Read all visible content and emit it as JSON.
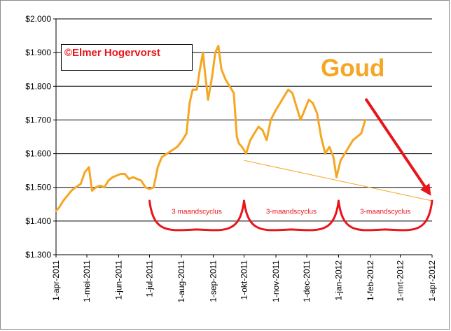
{
  "chart_data": {
    "type": "line",
    "title": "Goud",
    "copyright": "©Elmer Hogervorst",
    "xlabel": "",
    "ylabel": "",
    "ylim": [
      1300,
      2000
    ],
    "y_ticks": [
      "$1.300",
      "$1.400",
      "$1.500",
      "$1.600",
      "$1.700",
      "$1.800",
      "$1.900",
      "$2.000"
    ],
    "y_tick_values": [
      1300,
      1400,
      1500,
      1600,
      1700,
      1800,
      1900,
      2000
    ],
    "x_ticks": [
      "1-apr-2011",
      "1-mei-2011",
      "1-jun-2011",
      "1-jul-2011",
      "1-aug-2011",
      "1-sep-2011",
      "1-okt-2011",
      "1-nov-2011",
      "1-dec-2011",
      "1-jan-2012",
      "1-feb-2012",
      "1-mrt-2012",
      "1-apr-2012"
    ],
    "x_tick_dates": [
      "2011-04-01",
      "2011-05-01",
      "2011-06-01",
      "2011-07-01",
      "2011-08-01",
      "2011-09-01",
      "2011-10-01",
      "2011-11-01",
      "2011-12-01",
      "2012-01-01",
      "2012-02-01",
      "2012-03-01",
      "2012-04-01"
    ],
    "grid": "horizontal",
    "series": [
      {
        "color": "#f5a623",
        "x": [
          "2011-04-01",
          "2011-04-04",
          "2011-04-08",
          "2011-04-12",
          "2011-04-16",
          "2011-04-20",
          "2011-04-25",
          "2011-04-29",
          "2011-05-03",
          "2011-05-06",
          "2011-05-10",
          "2011-05-14",
          "2011-05-18",
          "2011-05-22",
          "2011-05-26",
          "2011-05-30",
          "2011-06-03",
          "2011-06-07",
          "2011-06-11",
          "2011-06-15",
          "2011-06-19",
          "2011-06-23",
          "2011-06-27",
          "2011-07-01",
          "2011-07-05",
          "2011-07-09",
          "2011-07-13",
          "2011-07-18",
          "2011-07-23",
          "2011-07-28",
          "2011-08-02",
          "2011-08-06",
          "2011-08-09",
          "2011-08-12",
          "2011-08-16",
          "2011-08-19",
          "2011-08-22",
          "2011-08-24",
          "2011-08-27",
          "2011-08-31",
          "2011-09-03",
          "2011-09-06",
          "2011-09-09",
          "2011-09-13",
          "2011-09-17",
          "2011-09-21",
          "2011-09-24",
          "2011-09-26",
          "2011-09-29",
          "2011-10-03",
          "2011-10-07",
          "2011-10-11",
          "2011-10-15",
          "2011-10-19",
          "2011-10-23",
          "2011-10-27",
          "2011-11-01",
          "2011-11-05",
          "2011-11-09",
          "2011-11-13",
          "2011-11-17",
          "2011-11-21",
          "2011-11-25",
          "2011-11-29",
          "2011-12-03",
          "2011-12-07",
          "2011-12-11",
          "2011-12-15",
          "2011-12-19",
          "2011-12-23",
          "2011-12-27",
          "2011-12-30",
          "2012-01-03",
          "2012-01-07",
          "2012-01-11",
          "2012-01-15",
          "2012-01-19",
          "2012-01-23",
          "2012-01-27"
        ],
        "values": [
          1430,
          1440,
          1460,
          1475,
          1490,
          1500,
          1510,
          1545,
          1560,
          1490,
          1500,
          1505,
          1500,
          1520,
          1530,
          1535,
          1540,
          1540,
          1525,
          1530,
          1525,
          1520,
          1500,
          1495,
          1500,
          1560,
          1590,
          1600,
          1610,
          1620,
          1640,
          1660,
          1750,
          1790,
          1790,
          1850,
          1900,
          1840,
          1760,
          1830,
          1900,
          1920,
          1850,
          1820,
          1800,
          1780,
          1650,
          1630,
          1620,
          1600,
          1640,
          1660,
          1680,
          1670,
          1640,
          1700,
          1730,
          1750,
          1770,
          1790,
          1780,
          1740,
          1700,
          1730,
          1760,
          1750,
          1720,
          1650,
          1600,
          1620,
          1590,
          1530,
          1580,
          1600,
          1620,
          1640,
          1650,
          1660,
          1700
        ]
      }
    ],
    "trendline": {
      "x": [
        "2011-10-01",
        "2012-04-01"
      ],
      "values": [
        1580,
        1460
      ],
      "color": "#f5a623"
    },
    "arrow": {
      "x": [
        "2012-01-28",
        "2012-03-31"
      ],
      "values": [
        1760,
        1475
      ],
      "color": "#e8151b"
    },
    "cycles": [
      {
        "label": "3 maandscyclus",
        "x": [
          "2011-07-01",
          "2011-10-01"
        ]
      },
      {
        "label": "3-maandscyclus",
        "x": [
          "2011-10-01",
          "2012-01-01"
        ]
      },
      {
        "label": "3-maandscyclus",
        "x": [
          "2012-01-01",
          "2012-04-01"
        ]
      }
    ]
  }
}
